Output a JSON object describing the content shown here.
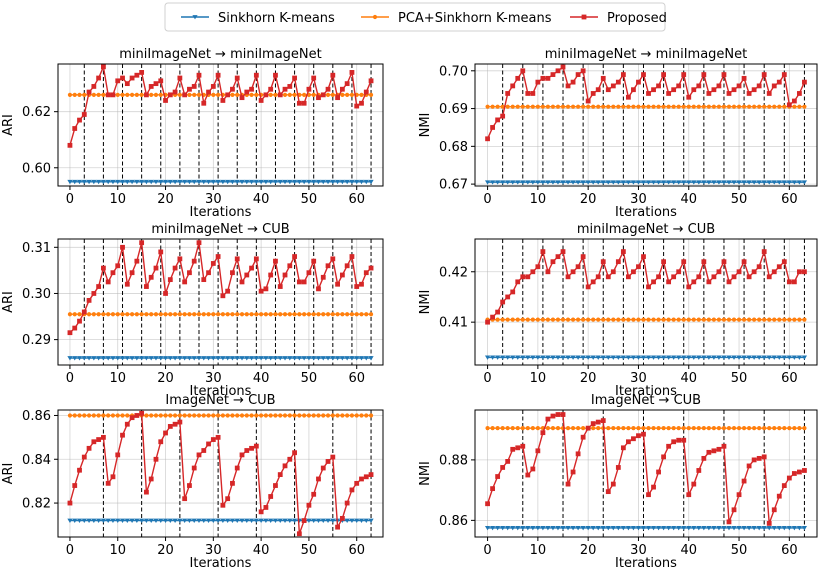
{
  "legend": {
    "items": [
      {
        "label": "Sinkhorn K-means",
        "color": "#1f77b4",
        "marker": "triangle-down"
      },
      {
        "label": "PCA+Sinkhorn K-means",
        "color": "#ff7f0e",
        "marker": "circle"
      },
      {
        "label": "Proposed",
        "color": "#d62728",
        "marker": "square"
      }
    ]
  },
  "chart_data": [
    {
      "type": "line",
      "title": "miniImageNet → miniImageNet",
      "xlabel": "Iterations",
      "ylabel": "ARI",
      "xlim": [
        -2.5,
        65.5
      ],
      "ylim": [
        0.5935,
        0.637
      ],
      "xticks": [
        0,
        10,
        20,
        30,
        40,
        50,
        60
      ],
      "yticks": [
        0.6,
        0.62
      ],
      "ytick_labels": [
        "0.60",
        "0.62"
      ],
      "grid": true,
      "vlines": [
        3,
        7,
        11,
        15,
        19,
        23,
        27,
        31,
        35,
        39,
        43,
        47,
        51,
        55,
        59,
        63
      ],
      "series": [
        {
          "name": "Sinkhorn K-means",
          "constant": 0.595,
          "n": 64
        },
        {
          "name": "PCA+Sinkhorn K-means",
          "constant": 0.626,
          "n": 64
        },
        {
          "name": "Proposed",
          "values": [
            0.608,
            0.614,
            0.617,
            0.619,
            0.627,
            0.629,
            0.632,
            0.636,
            0.626,
            0.626,
            0.631,
            0.632,
            0.63,
            0.632,
            0.633,
            0.634,
            0.626,
            0.629,
            0.63,
            0.631,
            0.624,
            0.626,
            0.627,
            0.632,
            0.626,
            0.628,
            0.629,
            0.633,
            0.623,
            0.627,
            0.629,
            0.633,
            0.624,
            0.626,
            0.628,
            0.632,
            0.625,
            0.627,
            0.628,
            0.633,
            0.624,
            0.626,
            0.628,
            0.633,
            0.626,
            0.628,
            0.629,
            0.632,
            0.623,
            0.623,
            0.628,
            0.632,
            0.625,
            0.626,
            0.628,
            0.633,
            0.625,
            0.628,
            0.63,
            0.634,
            0.622,
            0.623,
            0.627,
            0.631
          ]
        }
      ]
    },
    {
      "type": "line",
      "title": "miniImageNet → miniImageNet",
      "xlabel": "Iterations",
      "ylabel": "NMI",
      "xlim": [
        -2.5,
        65.5
      ],
      "ylim": [
        0.6695,
        0.7018
      ],
      "xticks": [
        0,
        10,
        20,
        30,
        40,
        50,
        60
      ],
      "yticks": [
        0.67,
        0.68,
        0.69,
        0.7
      ],
      "ytick_labels": [
        "0.67",
        "0.68",
        "0.69",
        "0.70"
      ],
      "grid": true,
      "vlines": [
        3,
        7,
        11,
        15,
        19,
        23,
        27,
        31,
        35,
        39,
        43,
        47,
        51,
        55,
        59,
        63
      ],
      "series": [
        {
          "name": "Sinkhorn K-means",
          "constant": 0.6705,
          "n": 64
        },
        {
          "name": "PCA+Sinkhorn K-means",
          "constant": 0.6905,
          "n": 64
        },
        {
          "name": "Proposed",
          "values": [
            0.682,
            0.685,
            0.687,
            0.688,
            0.694,
            0.696,
            0.698,
            0.7,
            0.694,
            0.694,
            0.697,
            0.698,
            0.698,
            0.699,
            0.7,
            0.701,
            0.696,
            0.697,
            0.699,
            0.7,
            0.692,
            0.694,
            0.695,
            0.698,
            0.695,
            0.696,
            0.697,
            0.699,
            0.693,
            0.695,
            0.697,
            0.699,
            0.694,
            0.695,
            0.696,
            0.699,
            0.694,
            0.695,
            0.696,
            0.699,
            0.693,
            0.695,
            0.696,
            0.699,
            0.694,
            0.695,
            0.696,
            0.699,
            0.694,
            0.695,
            0.696,
            0.698,
            0.694,
            0.695,
            0.696,
            0.699,
            0.694,
            0.696,
            0.697,
            0.699,
            0.691,
            0.692,
            0.694,
            0.697
          ]
        }
      ]
    },
    {
      "type": "line",
      "title": "miniImageNet → CUB",
      "xlabel": "Iterations",
      "ylabel": "ARI",
      "xlim": [
        -2.5,
        65.5
      ],
      "ylim": [
        0.2845,
        0.3118
      ],
      "xticks": [
        0,
        10,
        20,
        30,
        40,
        50,
        60
      ],
      "yticks": [
        0.29,
        0.3,
        0.31
      ],
      "ytick_labels": [
        "0.29",
        "0.30",
        "0.31"
      ],
      "grid": true,
      "vlines": [
        3,
        7,
        11,
        15,
        19,
        23,
        27,
        31,
        35,
        39,
        43,
        47,
        51,
        55,
        59,
        63
      ],
      "series": [
        {
          "name": "Sinkhorn K-means",
          "constant": 0.286,
          "n": 64
        },
        {
          "name": "PCA+Sinkhorn K-means",
          "constant": 0.2955,
          "n": 64
        },
        {
          "name": "Proposed",
          "values": [
            0.2915,
            0.2925,
            0.294,
            0.296,
            0.2985,
            0.3,
            0.3015,
            0.3055,
            0.3025,
            0.3045,
            0.306,
            0.31,
            0.302,
            0.3045,
            0.307,
            0.311,
            0.3015,
            0.3035,
            0.3055,
            0.309,
            0.3,
            0.303,
            0.3055,
            0.3075,
            0.3025,
            0.3045,
            0.307,
            0.311,
            0.303,
            0.3045,
            0.3065,
            0.308,
            0.2995,
            0.3005,
            0.3045,
            0.3075,
            0.3025,
            0.304,
            0.3055,
            0.3075,
            0.3005,
            0.301,
            0.304,
            0.307,
            0.3015,
            0.304,
            0.306,
            0.308,
            0.3025,
            0.3025,
            0.3045,
            0.307,
            0.301,
            0.3035,
            0.306,
            0.3075,
            0.302,
            0.304,
            0.306,
            0.308,
            0.3015,
            0.302,
            0.3045,
            0.3055
          ]
        }
      ]
    },
    {
      "type": "line",
      "title": "miniImageNet → CUB",
      "xlabel": "Iterations",
      "ylabel": "NMI",
      "xlim": [
        -2.5,
        65.5
      ],
      "ylim": [
        0.4015,
        0.4265
      ],
      "xticks": [
        0,
        10,
        20,
        30,
        40,
        50,
        60
      ],
      "yticks": [
        0.41,
        0.42
      ],
      "ytick_labels": [
        "0.41",
        "0.42"
      ],
      "grid": true,
      "vlines": [
        3,
        7,
        11,
        15,
        19,
        23,
        27,
        31,
        35,
        39,
        43,
        47,
        51,
        55,
        59,
        63
      ],
      "series": [
        {
          "name": "Sinkhorn K-means",
          "constant": 0.403,
          "n": 64
        },
        {
          "name": "PCA+Sinkhorn K-means",
          "constant": 0.4105,
          "n": 64
        },
        {
          "name": "Proposed",
          "values": [
            0.41,
            0.411,
            0.412,
            0.414,
            0.415,
            0.416,
            0.418,
            0.419,
            0.419,
            0.42,
            0.421,
            0.424,
            0.42,
            0.422,
            0.423,
            0.424,
            0.419,
            0.42,
            0.421,
            0.423,
            0.417,
            0.418,
            0.419,
            0.422,
            0.419,
            0.42,
            0.422,
            0.424,
            0.419,
            0.42,
            0.421,
            0.423,
            0.417,
            0.418,
            0.419,
            0.422,
            0.418,
            0.419,
            0.42,
            0.422,
            0.417,
            0.418,
            0.419,
            0.422,
            0.418,
            0.419,
            0.42,
            0.422,
            0.418,
            0.419,
            0.42,
            0.422,
            0.419,
            0.42,
            0.421,
            0.424,
            0.419,
            0.42,
            0.421,
            0.422,
            0.418,
            0.418,
            0.42,
            0.42
          ]
        }
      ]
    },
    {
      "type": "line",
      "title": "ImageNet → CUB",
      "xlabel": "Iterations",
      "ylabel": "ARI",
      "xlim": [
        -2.5,
        65.5
      ],
      "ylim": [
        0.8045,
        0.8625
      ],
      "xticks": [
        0,
        10,
        20,
        30,
        40,
        50,
        60
      ],
      "yticks": [
        0.82,
        0.84,
        0.86
      ],
      "ytick_labels": [
        "0.82",
        "0.84",
        "0.86"
      ],
      "grid": true,
      "vlines": [
        7,
        15,
        23,
        31,
        39,
        47,
        55,
        63
      ],
      "series": [
        {
          "name": "Sinkhorn K-means",
          "constant": 0.812,
          "n": 64
        },
        {
          "name": "PCA+Sinkhorn K-means",
          "constant": 0.86,
          "n": 64
        },
        {
          "name": "Proposed",
          "values": [
            0.82,
            0.828,
            0.835,
            0.841,
            0.845,
            0.848,
            0.849,
            0.85,
            0.829,
            0.832,
            0.842,
            0.851,
            0.856,
            0.859,
            0.86,
            0.861,
            0.825,
            0.831,
            0.84,
            0.848,
            0.852,
            0.855,
            0.856,
            0.857,
            0.822,
            0.828,
            0.836,
            0.842,
            0.844,
            0.847,
            0.849,
            0.85,
            0.819,
            0.822,
            0.829,
            0.836,
            0.842,
            0.844,
            0.845,
            0.846,
            0.816,
            0.818,
            0.823,
            0.828,
            0.833,
            0.837,
            0.84,
            0.843,
            0.806,
            0.812,
            0.819,
            0.824,
            0.831,
            0.836,
            0.839,
            0.841,
            0.809,
            0.813,
            0.82,
            0.826,
            0.829,
            0.831,
            0.832,
            0.833
          ]
        }
      ]
    },
    {
      "type": "line",
      "title": "ImageNet → CUB",
      "xlabel": "Iterations",
      "ylabel": "NMI",
      "xlim": [
        -2.5,
        65.5
      ],
      "ylim": [
        0.8545,
        0.8965
      ],
      "xticks": [
        0,
        10,
        20,
        30,
        40,
        50,
        60
      ],
      "yticks": [
        0.86,
        0.88
      ],
      "ytick_labels": [
        "0.86",
        "0.88"
      ],
      "grid": true,
      "vlines": [
        7,
        15,
        23,
        31,
        39,
        47,
        55,
        63
      ],
      "series": [
        {
          "name": "Sinkhorn K-means",
          "constant": 0.8575,
          "n": 64
        },
        {
          "name": "PCA+Sinkhorn K-means",
          "constant": 0.8905,
          "n": 64
        },
        {
          "name": "Proposed",
          "values": [
            0.8655,
            0.8705,
            0.8745,
            0.8775,
            0.8795,
            0.8835,
            0.884,
            0.8845,
            0.875,
            0.877,
            0.883,
            0.889,
            0.8935,
            0.8945,
            0.895,
            0.895,
            0.872,
            0.876,
            0.882,
            0.8875,
            0.8905,
            0.892,
            0.8925,
            0.893,
            0.8695,
            0.872,
            0.8775,
            0.884,
            0.886,
            0.887,
            0.888,
            0.8885,
            0.8685,
            0.871,
            0.876,
            0.881,
            0.8845,
            0.886,
            0.8865,
            0.8865,
            0.8685,
            0.872,
            0.8765,
            0.8805,
            0.8825,
            0.883,
            0.8835,
            0.8845,
            0.8595,
            0.8635,
            0.8685,
            0.873,
            0.878,
            0.88,
            0.8805,
            0.881,
            0.859,
            0.8635,
            0.868,
            0.8715,
            0.874,
            0.8755,
            0.876,
            0.8765
          ]
        }
      ]
    }
  ]
}
